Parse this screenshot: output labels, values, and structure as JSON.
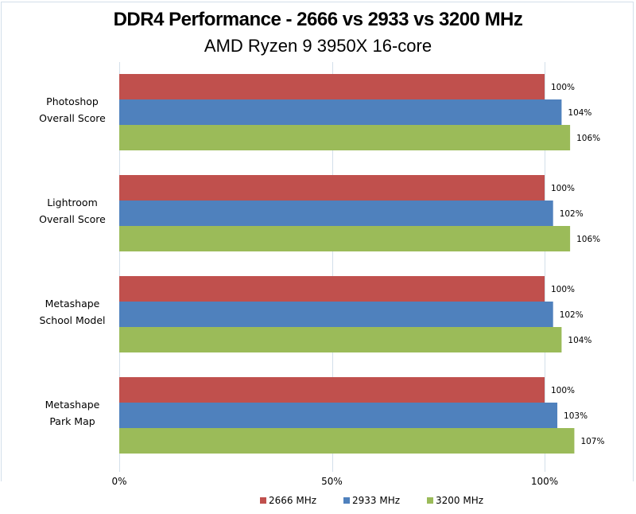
{
  "chart_data": {
    "type": "bar",
    "orientation": "horizontal",
    "title": "DDR4 Performance - 2666 vs 2933 vs 3200 MHz",
    "subtitle": "AMD Ryzen 9 3950X 16-core",
    "categories": [
      [
        "Photoshop",
        "Overall Score"
      ],
      [
        "Lightroom",
        "Overall Score"
      ],
      [
        "Metashape",
        "School Model"
      ],
      [
        "Metashape",
        "Park Map"
      ]
    ],
    "series": [
      {
        "name": "2666 MHz",
        "color": "#c0504d",
        "values": [
          100,
          100,
          100,
          100
        ],
        "labels": [
          "100%",
          "100%",
          "100%",
          "100%"
        ]
      },
      {
        "name": "2933 MHz",
        "color": "#4f81bd",
        "values": [
          104,
          102,
          102,
          103
        ],
        "labels": [
          "104%",
          "102%",
          "102%",
          "103%"
        ]
      },
      {
        "name": "3200 MHz",
        "color": "#9bbb59",
        "values": [
          106,
          106,
          104,
          107
        ],
        "labels": [
          "106%",
          "106%",
          "104%",
          "107%"
        ]
      }
    ],
    "xlim": [
      0,
      110
    ],
    "xticks": [
      0,
      50,
      100
    ],
    "xtick_labels": [
      "0%",
      "50%",
      "100%"
    ],
    "grid": true,
    "gridline_color": "#d3dfea",
    "xlabel": "",
    "ylabel": "",
    "legend_position": "bottom"
  }
}
